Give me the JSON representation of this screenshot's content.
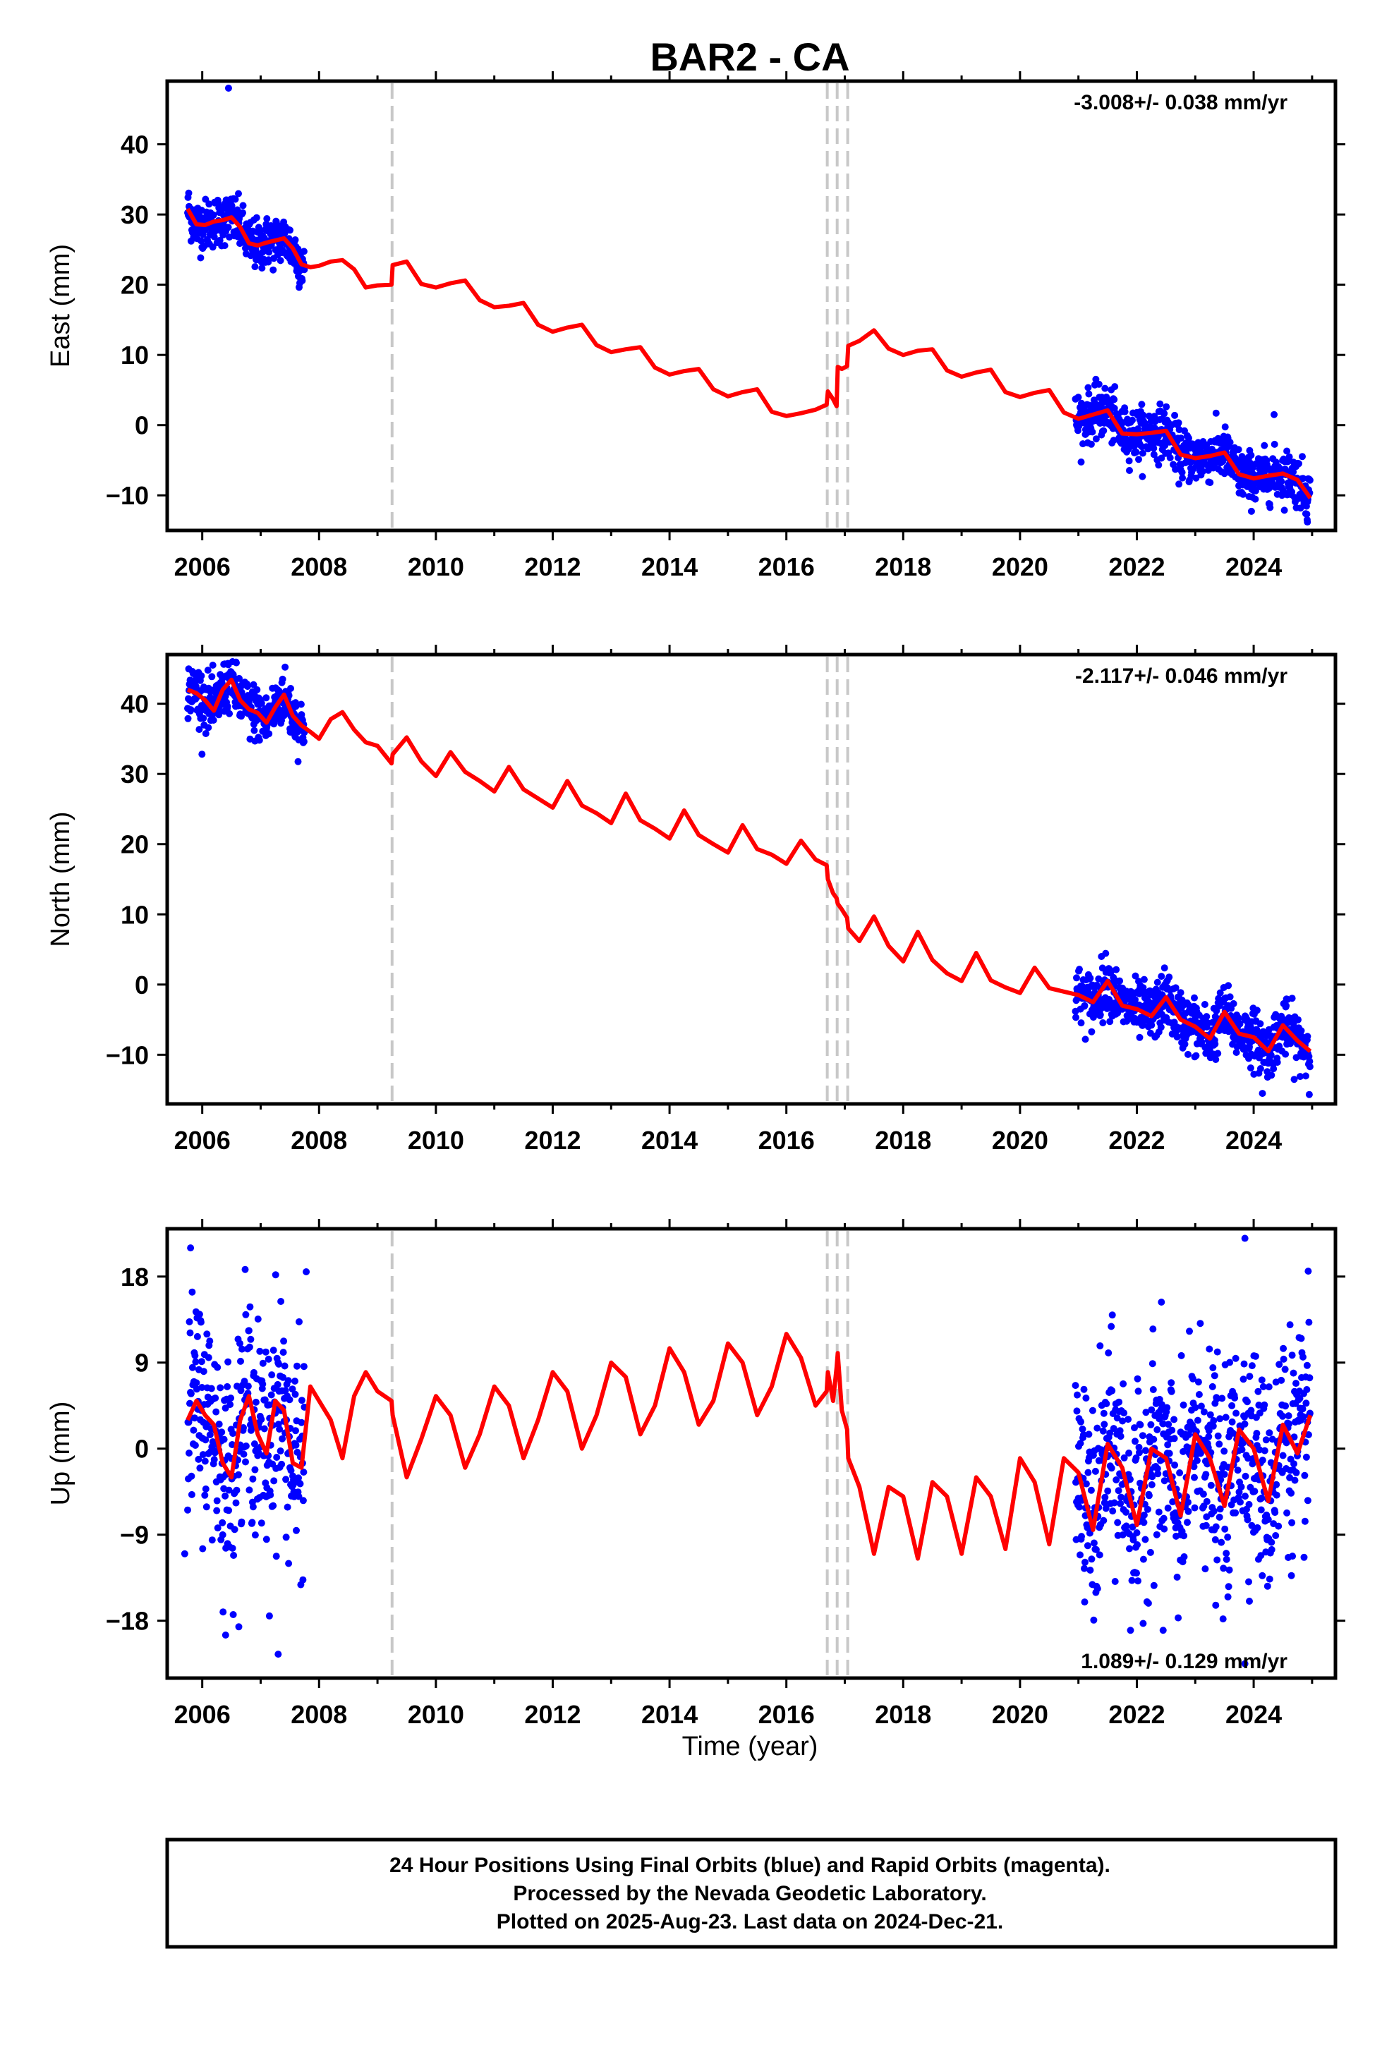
{
  "title": "BAR2 - CA",
  "xlabel": "Time (year)",
  "footer": {
    "line1": "24 Hour Positions Using Final Orbits (blue) and Rapid Orbits (magenta).",
    "line2": "Processed by the Nevada Geodetic Laboratory.",
    "line3": "Plotted on 2025-Aug-23. Last data on 2024-Dec-21."
  },
  "colors": {
    "data": "#0000ff",
    "model": "#ff0000",
    "steps": "#c8c8c8",
    "frame": "#000000"
  },
  "chart_data": [
    {
      "type": "scatter",
      "component": "East",
      "ylabel": "East (mm)",
      "rate": "-3.008+/- 0.038 mm/yr",
      "rate_position": "top-right",
      "xlim": [
        2005.4,
        2025.4
      ],
      "ylim": [
        -15,
        49
      ],
      "xticks": [
        2006,
        2008,
        2010,
        2012,
        2014,
        2016,
        2018,
        2020,
        2022,
        2024
      ],
      "yticks": [
        -10,
        0,
        10,
        20,
        30,
        40
      ],
      "steps": [
        2009.25,
        2016.7,
        2016.87,
        2017.05
      ],
      "model": {
        "x": [
          2005.75,
          2005.9,
          2006.05,
          2006.2,
          2006.35,
          2006.5,
          2006.65,
          2006.8,
          2006.95,
          2007.1,
          2007.25,
          2007.4,
          2007.55,
          2007.7,
          2007.85,
          2008.0,
          2008.2,
          2008.4,
          2008.6,
          2008.8,
          2009.0,
          2009.24,
          2009.26,
          2009.5,
          2009.75,
          2010.0,
          2010.25,
          2010.5,
          2010.75,
          2011.0,
          2011.25,
          2011.5,
          2011.75,
          2012.0,
          2012.25,
          2012.5,
          2012.75,
          2013.0,
          2013.25,
          2013.5,
          2013.75,
          2014.0,
          2014.25,
          2014.5,
          2014.75,
          2015.0,
          2015.25,
          2015.5,
          2015.75,
          2016.0,
          2016.25,
          2016.5,
          2016.69,
          2016.71,
          2016.8,
          2016.86,
          2016.88,
          2016.95,
          2017.04,
          2017.06,
          2017.25,
          2017.5,
          2017.75,
          2018.0,
          2018.25,
          2018.5,
          2018.75,
          2019.0,
          2019.25,
          2019.5,
          2019.75,
          2020.0,
          2020.25,
          2020.5,
          2020.75,
          2021.0,
          2021.25,
          2021.5,
          2021.75,
          2022.0,
          2022.25,
          2022.5,
          2022.75,
          2023.0,
          2023.25,
          2023.5,
          2023.75,
          2024.0,
          2024.25,
          2024.5,
          2024.75,
          2024.97
        ],
        "y": [
          30.8,
          28.6,
          28.5,
          29.0,
          29.2,
          29.6,
          28.2,
          25.9,
          25.6,
          26.0,
          26.3,
          26.6,
          25.2,
          22.9,
          22.5,
          22.7,
          23.3,
          23.5,
          22.2,
          19.6,
          19.9,
          20.0,
          22.8,
          23.3,
          20.1,
          19.6,
          20.2,
          20.6,
          17.8,
          16.8,
          17.0,
          17.4,
          14.3,
          13.3,
          13.9,
          14.3,
          11.4,
          10.4,
          10.8,
          11.1,
          8.2,
          7.2,
          7.7,
          8.0,
          5.1,
          4.1,
          4.7,
          5.1,
          1.9,
          1.3,
          1.7,
          2.2,
          2.9,
          4.8,
          3.7,
          2.7,
          8.3,
          8.0,
          8.4,
          11.3,
          12.0,
          13.5,
          10.9,
          10.0,
          10.6,
          10.8,
          7.8,
          6.9,
          7.5,
          7.9,
          4.7,
          4.0,
          4.6,
          5.0,
          1.8,
          0.9,
          1.5,
          2.1,
          -1.2,
          -1.3,
          -1.1,
          -0.8,
          -4.2,
          -4.7,
          -4.4,
          -3.9,
          -7.0,
          -7.6,
          -7.2,
          -6.9,
          -7.8,
          -10.4
        ]
      },
      "points": {
        "segments": [
          [
            2005.75,
            2007.75
          ],
          [
            2020.95,
            2024.97
          ]
        ],
        "outliers": [
          {
            "x": 2006.45,
            "y": 48
          },
          {
            "x": 2024.35,
            "y": 1.5
          },
          {
            "x": 2024.92,
            "y": -13.8
          }
        ]
      }
    },
    {
      "type": "scatter",
      "component": "North",
      "ylabel": "North (mm)",
      "rate": "-2.117+/- 0.046 mm/yr",
      "rate_position": "top-right",
      "xlim": [
        2005.4,
        2025.4
      ],
      "ylim": [
        -17,
        47
      ],
      "xticks": [
        2006,
        2008,
        2010,
        2012,
        2014,
        2016,
        2018,
        2020,
        2022,
        2024
      ],
      "yticks": [
        -10,
        0,
        10,
        20,
        30,
        40
      ],
      "steps": [
        2009.25,
        2016.7,
        2016.87,
        2017.05
      ],
      "model": {
        "x": [
          2005.75,
          2005.9,
          2006.05,
          2006.2,
          2006.35,
          2006.5,
          2006.65,
          2006.8,
          2006.95,
          2007.1,
          2007.25,
          2007.4,
          2007.55,
          2007.7,
          2007.85,
          2008.0,
          2008.2,
          2008.4,
          2008.6,
          2008.8,
          2009.0,
          2009.24,
          2009.26,
          2009.5,
          2009.75,
          2010.0,
          2010.25,
          2010.5,
          2010.75,
          2011.0,
          2011.25,
          2011.5,
          2011.75,
          2012.0,
          2012.25,
          2012.5,
          2012.75,
          2013.0,
          2013.25,
          2013.5,
          2013.75,
          2014.0,
          2014.25,
          2014.5,
          2014.75,
          2015.0,
          2015.25,
          2015.5,
          2015.75,
          2016.0,
          2016.25,
          2016.5,
          2016.69,
          2016.71,
          2016.8,
          2016.86,
          2016.88,
          2016.95,
          2017.04,
          2017.06,
          2017.25,
          2017.5,
          2017.75,
          2018.0,
          2018.25,
          2018.5,
          2018.75,
          2019.0,
          2019.25,
          2019.5,
          2019.75,
          2020.0,
          2020.25,
          2020.5,
          2020.75,
          2021.0,
          2021.25,
          2021.5,
          2021.75,
          2022.0,
          2022.25,
          2022.5,
          2022.75,
          2023.0,
          2023.25,
          2023.5,
          2023.75,
          2024.0,
          2024.25,
          2024.5,
          2024.75,
          2024.97
        ],
        "y": [
          42.0,
          41.5,
          40.5,
          39.0,
          42.0,
          43.4,
          40.5,
          39.2,
          38.7,
          37.3,
          39.5,
          41.3,
          38.3,
          36.9,
          36.0,
          35.0,
          37.8,
          38.8,
          36.3,
          34.5,
          34.0,
          31.5,
          32.8,
          35.2,
          31.8,
          29.7,
          33.1,
          30.3,
          29.0,
          27.5,
          31.0,
          27.8,
          26.5,
          25.2,
          29.0,
          25.5,
          24.4,
          23.0,
          27.2,
          23.4,
          22.2,
          20.8,
          24.8,
          21.3,
          20.0,
          18.8,
          22.7,
          19.3,
          18.5,
          17.2,
          20.5,
          17.8,
          17.0,
          15.0,
          13.0,
          12.3,
          11.5,
          10.7,
          9.5,
          8.0,
          6.2,
          9.7,
          5.5,
          3.3,
          7.5,
          3.5,
          1.6,
          0.5,
          4.5,
          0.6,
          -0.4,
          -1.2,
          2.4,
          -0.5,
          -1.0,
          -1.5,
          -2.5,
          0.5,
          -3.0,
          -3.5,
          -4.5,
          -1.8,
          -5.0,
          -6.0,
          -7.7,
          -3.9,
          -7.0,
          -7.5,
          -9.5,
          -5.8,
          -8.0,
          -9.5
        ]
      },
      "points": {
        "segments": [
          [
            2005.75,
            2007.75
          ],
          [
            2020.95,
            2024.97
          ]
        ],
        "outliers": [
          {
            "x": 2024.15,
            "y": -15.5
          }
        ]
      }
    },
    {
      "type": "scatter",
      "component": "Up",
      "ylabel": "Up (mm)",
      "rate": "1.089+/- 0.129 mm/yr",
      "rate_position": "bottom-right",
      "xlim": [
        2005.4,
        2025.4
      ],
      "ylim": [
        -24,
        23
      ],
      "xticks": [
        2006,
        2008,
        2010,
        2012,
        2014,
        2016,
        2018,
        2020,
        2022,
        2024
      ],
      "yticks": [
        -18,
        -9,
        0,
        9,
        18
      ],
      "steps": [
        2009.25,
        2016.7,
        2016.87,
        2017.05
      ],
      "model": {
        "x": [
          2005.75,
          2005.9,
          2006.05,
          2006.2,
          2006.35,
          2006.5,
          2006.65,
          2006.8,
          2006.95,
          2007.1,
          2007.25,
          2007.4,
          2007.55,
          2007.7,
          2007.85,
          2008.0,
          2008.2,
          2008.4,
          2008.6,
          2008.8,
          2009.0,
          2009.24,
          2009.26,
          2009.5,
          2009.75,
          2010.0,
          2010.25,
          2010.5,
          2010.75,
          2011.0,
          2011.25,
          2011.5,
          2011.75,
          2012.0,
          2012.25,
          2012.5,
          2012.75,
          2013.0,
          2013.25,
          2013.5,
          2013.75,
          2014.0,
          2014.25,
          2014.5,
          2014.75,
          2015.0,
          2015.25,
          2015.5,
          2015.75,
          2016.0,
          2016.25,
          2016.5,
          2016.69,
          2016.71,
          2016.8,
          2016.86,
          2016.88,
          2016.95,
          2017.04,
          2017.06,
          2017.25,
          2017.5,
          2017.75,
          2018.0,
          2018.25,
          2018.5,
          2018.75,
          2019.0,
          2019.25,
          2019.5,
          2019.75,
          2020.0,
          2020.25,
          2020.5,
          2020.75,
          2021.0,
          2021.25,
          2021.5,
          2021.75,
          2022.0,
          2022.25,
          2022.5,
          2022.75,
          2023.0,
          2023.25,
          2023.5,
          2023.75,
          2024.0,
          2024.25,
          2024.5,
          2024.75,
          2024.97
        ],
        "y": [
          3.0,
          5.0,
          3.5,
          2.5,
          -1.5,
          -3.0,
          3.0,
          5.5,
          1.5,
          -0.5,
          5.0,
          4.0,
          -1.5,
          -2.0,
          6.5,
          5.0,
          3.0,
          -1.0,
          5.5,
          8.0,
          6.0,
          5.0,
          3.5,
          -3.0,
          1.0,
          5.5,
          3.5,
          -2.0,
          1.5,
          6.5,
          4.5,
          -1.0,
          3.0,
          8.0,
          6.0,
          0.0,
          3.5,
          9.0,
          7.5,
          1.5,
          4.5,
          10.5,
          8.0,
          2.5,
          5.0,
          11.0,
          9.0,
          3.5,
          6.5,
          12.0,
          9.5,
          4.5,
          6.0,
          8.0,
          5.0,
          8.5,
          10.0,
          4.0,
          2.0,
          -1.0,
          -4.0,
          -11.0,
          -4.0,
          -5.0,
          -11.5,
          -3.5,
          -5.0,
          -11.0,
          -3.0,
          -5.0,
          -10.5,
          -1.0,
          -3.5,
          -10.0,
          -1.0,
          -2.5,
          -8.5,
          0.5,
          -2.0,
          -8.0,
          0.0,
          -1.0,
          -7.0,
          1.5,
          -1.0,
          -6.0,
          2.0,
          0.0,
          -5.5,
          2.5,
          -0.5,
          3.5
        ]
      },
      "points": {
        "segments": [
          [
            2005.75,
            2007.75
          ],
          [
            2020.95,
            2024.97
          ]
        ],
        "outliers": [
          {
            "x": 2005.8,
            "y": 21
          },
          {
            "x": 2006.4,
            "y": -19.5
          },
          {
            "x": 2007.3,
            "y": -21.5
          },
          {
            "x": 2007.15,
            "y": -17.5
          },
          {
            "x": 2007.78,
            "y": 18.5
          },
          {
            "x": 2023.85,
            "y": 22
          },
          {
            "x": 2022.45,
            "y": -19
          },
          {
            "x": 2023.85,
            "y": -22.5
          },
          {
            "x": 2005.7,
            "y": -11
          }
        ]
      }
    }
  ]
}
